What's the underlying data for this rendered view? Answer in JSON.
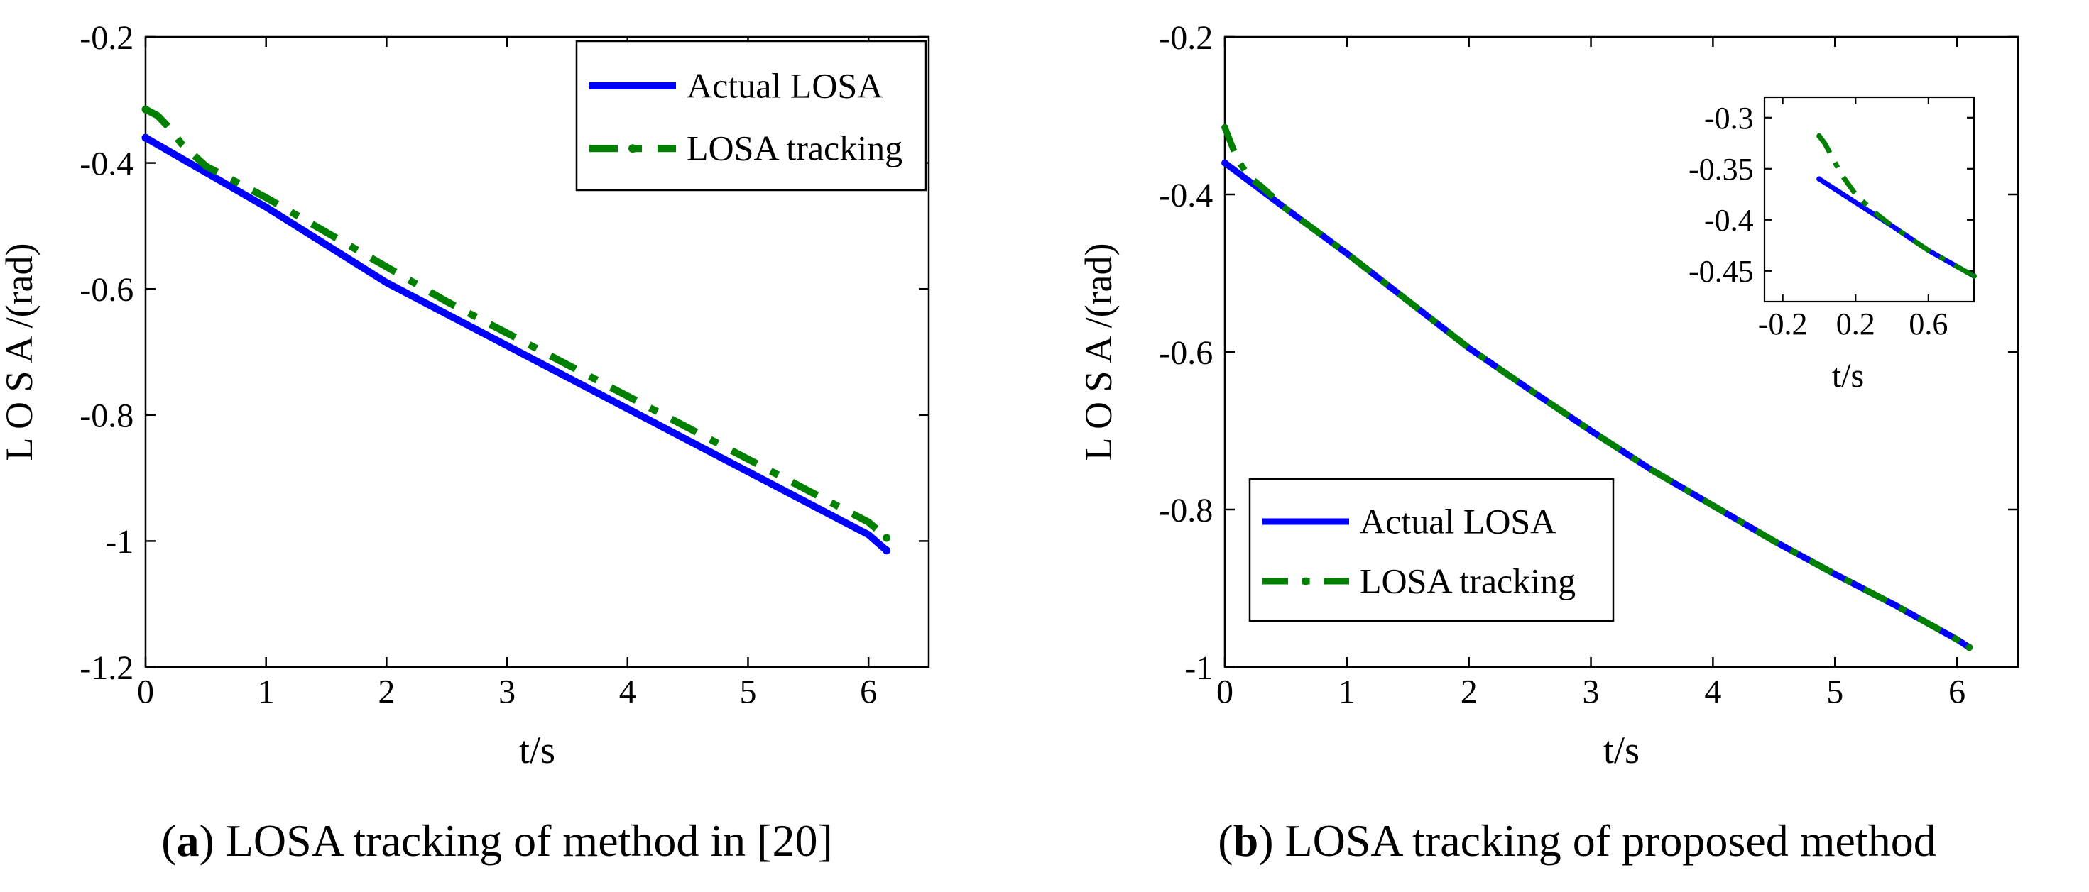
{
  "chart_data": [
    {
      "type": "line",
      "title": "",
      "xlabel": "t/s",
      "ylabel": "L O S A /(rad)",
      "xlim": [
        0,
        6.5
      ],
      "ylim": [
        -1.2,
        -0.2
      ],
      "xticks": [
        "0",
        "1",
        "2",
        "3",
        "4",
        "5",
        "6"
      ],
      "yticks": [
        "-0.2",
        "-0.4",
        "-0.6",
        "-0.8",
        "-1",
        "-1.2"
      ],
      "legend_position": "top-right",
      "series": [
        {
          "name": "Actual LOSA",
          "color": "#0000ff",
          "style": "solid",
          "x": [
            0,
            0.5,
            1,
            1.5,
            2,
            2.5,
            3,
            3.5,
            4,
            4.5,
            5,
            5.5,
            6,
            6.15
          ],
          "y": [
            -0.36,
            -0.415,
            -0.47,
            -0.53,
            -0.59,
            -0.64,
            -0.69,
            -0.74,
            -0.79,
            -0.84,
            -0.89,
            -0.94,
            -0.99,
            -1.015
          ]
        },
        {
          "name": "LOSA tracking",
          "color": "#008000",
          "style": "dashdot",
          "x": [
            0,
            0.1,
            0.2,
            0.3,
            0.5,
            1,
            1.5,
            2,
            2.5,
            3,
            3.5,
            4,
            4.5,
            5,
            5.5,
            6,
            6.15
          ],
          "y": [
            -0.315,
            -0.325,
            -0.345,
            -0.37,
            -0.405,
            -0.455,
            -0.51,
            -0.565,
            -0.62,
            -0.67,
            -0.72,
            -0.77,
            -0.82,
            -0.87,
            -0.92,
            -0.97,
            -0.995
          ]
        }
      ],
      "caption": {
        "label": "a",
        "text": " LOSA tracking of method in [20]"
      }
    },
    {
      "type": "line",
      "title": "",
      "xlabel": "t/s",
      "ylabel": "L O S A /(rad)",
      "xlim": [
        0,
        6.5
      ],
      "ylim": [
        -1.0,
        -0.2
      ],
      "xticks": [
        "0",
        "1",
        "2",
        "3",
        "4",
        "5",
        "6"
      ],
      "yticks": [
        "-0.2",
        "-0.4",
        "-0.6",
        "-0.8",
        "-1"
      ],
      "legend_position": "bottom-left",
      "series": [
        {
          "name": "Actual LOSA",
          "color": "#0000ff",
          "style": "solid",
          "x": [
            0,
            0.5,
            1,
            1.5,
            2,
            2.5,
            3,
            3.5,
            4,
            4.5,
            5,
            5.5,
            6,
            6.1
          ],
          "y": [
            -0.36,
            -0.418,
            -0.475,
            -0.535,
            -0.595,
            -0.648,
            -0.7,
            -0.75,
            -0.795,
            -0.84,
            -0.882,
            -0.922,
            -0.965,
            -0.975
          ]
        },
        {
          "name": "LOSA tracking",
          "color": "#008000",
          "style": "dashdot",
          "x": [
            0,
            0.05,
            0.1,
            0.2,
            0.3,
            0.5,
            1,
            1.5,
            2,
            2.5,
            3,
            3.5,
            4,
            4.5,
            5,
            5.5,
            6,
            6.1
          ],
          "y": [
            -0.315,
            -0.335,
            -0.355,
            -0.378,
            -0.39,
            -0.418,
            -0.475,
            -0.535,
            -0.595,
            -0.648,
            -0.7,
            -0.75,
            -0.795,
            -0.84,
            -0.882,
            -0.922,
            -0.965,
            -0.975
          ]
        }
      ],
      "inset": {
        "xlabel": "t/s",
        "xlim": [
          -0.3,
          0.85
        ],
        "ylim": [
          -0.48,
          -0.28
        ],
        "xticks": [
          "-0.2",
          "0.2",
          "0.6"
        ],
        "yticks": [
          "-0.3",
          "-0.35",
          "-0.4",
          "-0.45"
        ],
        "series": [
          {
            "name": "Actual LOSA",
            "x": [
              0,
              0.2,
              0.4,
              0.6,
              0.85
            ],
            "y": [
              -0.36,
              -0.383,
              -0.406,
              -0.43,
              -0.455
            ]
          },
          {
            "name": "LOSA tracking",
            "x": [
              0,
              0.03,
              0.07,
              0.12,
              0.2,
              0.3,
              0.4,
              0.6,
              0.85
            ],
            "y": [
              -0.318,
              -0.325,
              -0.338,
              -0.355,
              -0.375,
              -0.392,
              -0.406,
              -0.43,
              -0.455
            ]
          }
        ]
      },
      "caption": {
        "label": "b",
        "text": " LOSA tracking of proposed method"
      }
    }
  ]
}
